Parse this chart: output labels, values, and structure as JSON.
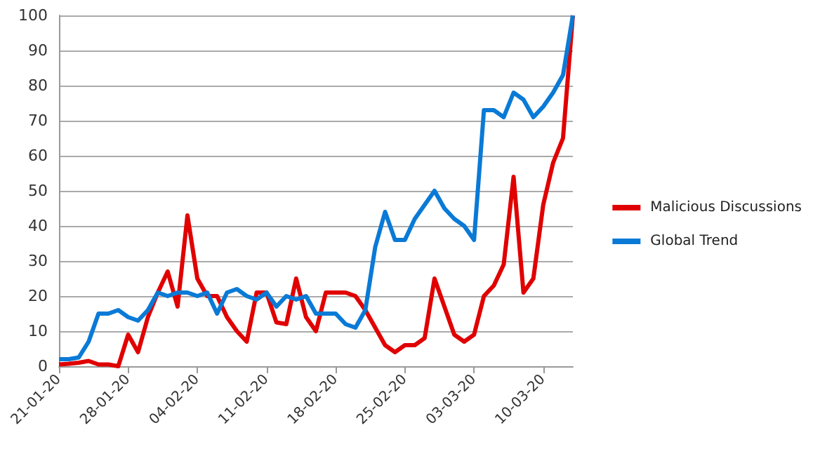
{
  "chart_data": {
    "type": "line",
    "x": [
      "--01-21",
      "--01-22",
      "--01-23",
      "--01-24",
      "--01-25",
      "--01-26",
      "--01-27",
      "--01-28",
      "--01-29",
      "--01-30",
      "--01-31",
      "--02-01",
      "--02-02",
      "--02-03",
      "--02-04",
      "--02-05",
      "--02-06",
      "--02-07",
      "--02-08",
      "--02-09",
      "--02-10",
      "--02-11",
      "--02-12",
      "--02-13",
      "--02-14",
      "--02-15",
      "--02-16",
      "--02-17",
      "--02-18",
      "--02-19",
      "--02-20",
      "--02-21",
      "--02-22",
      "--02-23",
      "--02-24",
      "--02-25",
      "--02-26",
      "--02-27",
      "--02-28",
      "--02-29",
      "--03-01",
      "--03-02",
      "--03-03",
      "--03-04",
      "--03-05",
      "--03-06",
      "--03-07",
      "--03-08",
      "--03-09",
      "--03-10",
      "--03-11",
      "--03-12",
      "--03-13"
    ],
    "series": [
      {
        "name": "Malicious Discussions",
        "color": "#e00000",
        "values": [
          0.5,
          0.7,
          1,
          1.5,
          0.5,
          0.5,
          0,
          9,
          4,
          14,
          21,
          27,
          17,
          43,
          25,
          20,
          20,
          14,
          10,
          7,
          21,
          21,
          12.5,
          12,
          25,
          14,
          10,
          21,
          21,
          21,
          20,
          16,
          11,
          6,
          4,
          6,
          6,
          8,
          25,
          17,
          9,
          7,
          9,
          20,
          23,
          29,
          54,
          21,
          25,
          46,
          58,
          65,
          100
        ]
      },
      {
        "name": "Global Trend",
        "color": "#0a7ad6",
        "values": [
          2,
          2,
          2.5,
          7,
          15,
          15,
          16,
          14,
          13,
          16,
          21,
          20,
          21,
          21,
          20,
          21,
          15,
          21,
          22,
          20,
          19,
          21,
          17,
          20,
          19,
          20,
          15,
          15,
          15,
          12,
          11,
          16,
          34,
          44,
          36,
          36,
          42,
          46,
          50,
          45,
          42,
          40,
          36,
          73,
          73,
          71,
          78,
          76,
          71,
          74,
          78,
          83,
          100
        ]
      }
    ],
    "xlim": [
      "--01-21",
      "--03-13"
    ],
    "xticks": [
      {
        "value": "--01-21",
        "label": "21-01-20"
      },
      {
        "value": "--01-28",
        "label": "28-01-20"
      },
      {
        "value": "--02-04",
        "label": "04-02-20"
      },
      {
        "value": "--02-11",
        "label": "11-02-20"
      },
      {
        "value": "--02-18",
        "label": "18-02-20"
      },
      {
        "value": "--02-25",
        "label": "25-02-20"
      },
      {
        "value": "--03-03",
        "label": "03-03-20"
      },
      {
        "value": "--03-10",
        "label": "10-03-20"
      }
    ],
    "ylim": [
      0,
      100
    ],
    "yticks": [
      0,
      10,
      20,
      30,
      40,
      50,
      60,
      70,
      80,
      90,
      100
    ],
    "grid": "y",
    "legend": "right",
    "marker": "none",
    "line_style": "solid"
  }
}
